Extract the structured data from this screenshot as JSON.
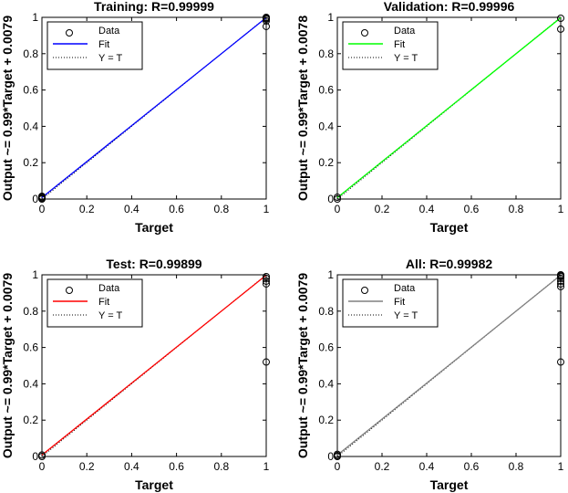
{
  "chart_data": [
    {
      "type": "scatter",
      "title": "Training: R=0.99999",
      "xlabel": "Target",
      "ylabel": "Output ~= 0.99*Target + 0.0079",
      "xlim": [
        0,
        1
      ],
      "ylim": [
        0,
        1
      ],
      "xticks": [
        "0",
        "0.2",
        "0.4",
        "0.6",
        "0.8",
        "1"
      ],
      "yticks": [
        "0",
        "0.2",
        "0.4",
        "0.6",
        "0.8",
        "1"
      ],
      "grid": false,
      "legend": "top-left",
      "fit_color": "#0000ff",
      "fit": {
        "slope": 0.99,
        "intercept": 0.0079
      },
      "data_points": [
        {
          "x": 0,
          "y": 0.0
        },
        {
          "x": 0,
          "y": 0.005
        },
        {
          "x": 0,
          "y": 0.01
        },
        {
          "x": 0,
          "y": 0.015
        },
        {
          "x": 1,
          "y": 0.95
        },
        {
          "x": 1,
          "y": 0.98
        },
        {
          "x": 1,
          "y": 0.99
        },
        {
          "x": 1,
          "y": 0.995
        },
        {
          "x": 1,
          "y": 1.0
        }
      ],
      "series": [
        {
          "name": "Data",
          "marker": "circle"
        },
        {
          "name": "Fit",
          "color": "#0000ff"
        },
        {
          "name": "Y = T",
          "style": "dotted"
        }
      ]
    },
    {
      "type": "scatter",
      "title": "Validation: R=0.99996",
      "xlabel": "Target",
      "ylabel": "Output ~= 0.99*Target + 0.0078",
      "xlim": [
        0,
        1
      ],
      "ylim": [
        0,
        1
      ],
      "xticks": [
        "0",
        "0.2",
        "0.4",
        "0.6",
        "0.8",
        "1"
      ],
      "yticks": [
        "0",
        "0.2",
        "0.4",
        "0.6",
        "0.8",
        "1"
      ],
      "grid": false,
      "legend": "top-left",
      "fit_color": "#00ff00",
      "fit": {
        "slope": 0.99,
        "intercept": 0.0078
      },
      "data_points": [
        {
          "x": 0,
          "y": 0.0
        },
        {
          "x": 0,
          "y": 0.01
        },
        {
          "x": 1,
          "y": 0.935
        },
        {
          "x": 1,
          "y": 0.995
        }
      ],
      "series": [
        {
          "name": "Data",
          "marker": "circle"
        },
        {
          "name": "Fit",
          "color": "#00ff00"
        },
        {
          "name": "Y = T",
          "style": "dotted"
        }
      ]
    },
    {
      "type": "scatter",
      "title": "Test: R=0.99899",
      "xlabel": "Target",
      "ylabel": "Output ~= 0.99*Target + 0.0079",
      "xlim": [
        0,
        1
      ],
      "ylim": [
        0,
        1
      ],
      "xticks": [
        "0",
        "0.2",
        "0.4",
        "0.6",
        "0.8",
        "1"
      ],
      "yticks": [
        "0",
        "0.2",
        "0.4",
        "0.6",
        "0.8",
        "1"
      ],
      "grid": false,
      "legend": "top-left",
      "fit_color": "#ff0000",
      "fit": {
        "slope": 0.99,
        "intercept": 0.0079
      },
      "data_points": [
        {
          "x": 0,
          "y": 0.0
        },
        {
          "x": 0,
          "y": 0.008
        },
        {
          "x": 1,
          "y": 0.52
        },
        {
          "x": 1,
          "y": 0.95
        },
        {
          "x": 1,
          "y": 0.965
        },
        {
          "x": 1,
          "y": 0.98
        },
        {
          "x": 1,
          "y": 0.99
        }
      ],
      "series": [
        {
          "name": "Data",
          "marker": "circle"
        },
        {
          "name": "Fit",
          "color": "#ff0000"
        },
        {
          "name": "Y = T",
          "style": "dotted"
        }
      ]
    },
    {
      "type": "scatter",
      "title": "All: R=0.99982",
      "xlabel": "Target",
      "ylabel": "Output ~= 0.99*Target + 0.0079",
      "xlim": [
        0,
        1
      ],
      "ylim": [
        0,
        1
      ],
      "xticks": [
        "0",
        "0.2",
        "0.4",
        "0.6",
        "0.8",
        "1"
      ],
      "yticks": [
        "0",
        "0.2",
        "0.4",
        "0.6",
        "0.8",
        "1"
      ],
      "grid": false,
      "legend": "top-left",
      "fit_color": "#808080",
      "fit": {
        "slope": 0.99,
        "intercept": 0.0079
      },
      "data_points": [
        {
          "x": 0,
          "y": 0.0
        },
        {
          "x": 0,
          "y": 0.005
        },
        {
          "x": 0,
          "y": 0.012
        },
        {
          "x": 1,
          "y": 0.52
        },
        {
          "x": 1,
          "y": 0.935
        },
        {
          "x": 1,
          "y": 0.95
        },
        {
          "x": 1,
          "y": 0.965
        },
        {
          "x": 1,
          "y": 0.98
        },
        {
          "x": 1,
          "y": 0.99
        },
        {
          "x": 1,
          "y": 0.995
        },
        {
          "x": 1,
          "y": 1.0
        }
      ],
      "series": [
        {
          "name": "Data",
          "marker": "circle"
        },
        {
          "name": "Fit",
          "color": "#808080"
        },
        {
          "name": "Y = T",
          "style": "dotted"
        }
      ]
    }
  ]
}
